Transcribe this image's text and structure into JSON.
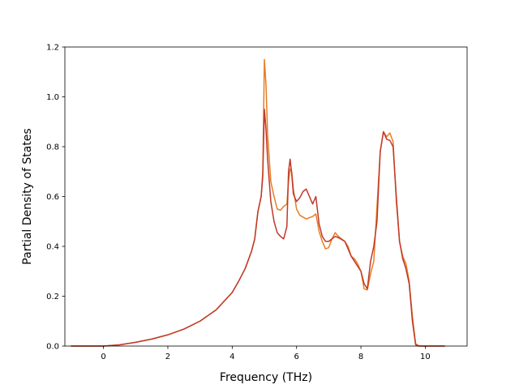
{
  "chart_data": {
    "type": "line",
    "title": "",
    "xlabel": "Frequency (THz)",
    "ylabel": "Partial Density of States",
    "xlim": [
      -1.2,
      11.3
    ],
    "ylim": [
      0.0,
      1.2
    ],
    "xticks": [
      0,
      2,
      4,
      6,
      8,
      10
    ],
    "xtick_labels": [
      "0",
      "2",
      "4",
      "6",
      "8",
      "10"
    ],
    "yticks": [
      0.0,
      0.2,
      0.4,
      0.6,
      0.8,
      1.0,
      1.2
    ],
    "ytick_labels": [
      "0.0",
      "0.2",
      "0.4",
      "0.6",
      "0.8",
      "1.0",
      "1.2"
    ],
    "grid": false,
    "series": [
      {
        "color": "#e67e22",
        "points": [
          [
            -1.0,
            0.0
          ],
          [
            0.0,
            0.0
          ],
          [
            0.5,
            0.005
          ],
          [
            1.0,
            0.015
          ],
          [
            1.5,
            0.028
          ],
          [
            2.0,
            0.045
          ],
          [
            2.5,
            0.068
          ],
          [
            3.0,
            0.1
          ],
          [
            3.5,
            0.145
          ],
          [
            4.0,
            0.215
          ],
          [
            4.2,
            0.26
          ],
          [
            4.4,
            0.31
          ],
          [
            4.6,
            0.38
          ],
          [
            4.7,
            0.43
          ],
          [
            4.8,
            0.54
          ],
          [
            4.9,
            0.6
          ],
          [
            4.95,
            0.7
          ],
          [
            5.0,
            1.15
          ],
          [
            5.05,
            1.05
          ],
          [
            5.1,
            0.85
          ],
          [
            5.2,
            0.66
          ],
          [
            5.3,
            0.6
          ],
          [
            5.4,
            0.55
          ],
          [
            5.5,
            0.545
          ],
          [
            5.6,
            0.56
          ],
          [
            5.7,
            0.57
          ],
          [
            5.75,
            0.66
          ],
          [
            5.8,
            0.71
          ],
          [
            5.85,
            0.7
          ],
          [
            5.9,
            0.63
          ],
          [
            6.0,
            0.55
          ],
          [
            6.1,
            0.525
          ],
          [
            6.3,
            0.51
          ],
          [
            6.5,
            0.52
          ],
          [
            6.6,
            0.53
          ],
          [
            6.7,
            0.46
          ],
          [
            6.8,
            0.42
          ],
          [
            6.9,
            0.39
          ],
          [
            7.0,
            0.395
          ],
          [
            7.1,
            0.43
          ],
          [
            7.2,
            0.455
          ],
          [
            7.3,
            0.44
          ],
          [
            7.5,
            0.42
          ],
          [
            7.6,
            0.4
          ],
          [
            7.7,
            0.36
          ],
          [
            7.8,
            0.35
          ],
          [
            7.9,
            0.33
          ],
          [
            8.0,
            0.3
          ],
          [
            8.1,
            0.23
          ],
          [
            8.2,
            0.225
          ],
          [
            8.3,
            0.29
          ],
          [
            8.4,
            0.34
          ],
          [
            8.5,
            0.56
          ],
          [
            8.6,
            0.78
          ],
          [
            8.7,
            0.86
          ],
          [
            8.8,
            0.84
          ],
          [
            8.9,
            0.855
          ],
          [
            9.0,
            0.82
          ],
          [
            9.1,
            0.58
          ],
          [
            9.2,
            0.42
          ],
          [
            9.3,
            0.36
          ],
          [
            9.4,
            0.33
          ],
          [
            9.5,
            0.26
          ],
          [
            9.6,
            0.12
          ],
          [
            9.7,
            0.01
          ],
          [
            9.8,
            0.0
          ],
          [
            10.6,
            0.0
          ]
        ]
      },
      {
        "color": "#c0392b",
        "points": [
          [
            -1.0,
            0.0
          ],
          [
            0.0,
            0.0
          ],
          [
            0.5,
            0.005
          ],
          [
            1.0,
            0.015
          ],
          [
            1.5,
            0.028
          ],
          [
            2.0,
            0.045
          ],
          [
            2.5,
            0.068
          ],
          [
            3.0,
            0.1
          ],
          [
            3.5,
            0.145
          ],
          [
            4.0,
            0.215
          ],
          [
            4.2,
            0.26
          ],
          [
            4.4,
            0.31
          ],
          [
            4.6,
            0.38
          ],
          [
            4.7,
            0.43
          ],
          [
            4.8,
            0.54
          ],
          [
            4.9,
            0.6
          ],
          [
            4.95,
            0.68
          ],
          [
            5.0,
            0.95
          ],
          [
            5.05,
            0.87
          ],
          [
            5.1,
            0.75
          ],
          [
            5.2,
            0.58
          ],
          [
            5.3,
            0.5
          ],
          [
            5.4,
            0.455
          ],
          [
            5.5,
            0.44
          ],
          [
            5.6,
            0.43
          ],
          [
            5.7,
            0.48
          ],
          [
            5.75,
            0.7
          ],
          [
            5.8,
            0.75
          ],
          [
            5.85,
            0.69
          ],
          [
            5.9,
            0.61
          ],
          [
            6.0,
            0.58
          ],
          [
            6.1,
            0.595
          ],
          [
            6.2,
            0.62
          ],
          [
            6.3,
            0.63
          ],
          [
            6.4,
            0.6
          ],
          [
            6.5,
            0.57
          ],
          [
            6.6,
            0.6
          ],
          [
            6.7,
            0.49
          ],
          [
            6.8,
            0.44
          ],
          [
            6.9,
            0.42
          ],
          [
            7.0,
            0.42
          ],
          [
            7.1,
            0.43
          ],
          [
            7.2,
            0.44
          ],
          [
            7.3,
            0.435
          ],
          [
            7.5,
            0.42
          ],
          [
            7.6,
            0.39
          ],
          [
            7.7,
            0.36
          ],
          [
            7.8,
            0.34
          ],
          [
            7.9,
            0.32
          ],
          [
            8.0,
            0.3
          ],
          [
            8.1,
            0.25
          ],
          [
            8.2,
            0.23
          ],
          [
            8.3,
            0.34
          ],
          [
            8.4,
            0.4
          ],
          [
            8.5,
            0.5
          ],
          [
            8.6,
            0.78
          ],
          [
            8.7,
            0.86
          ],
          [
            8.8,
            0.83
          ],
          [
            8.9,
            0.825
          ],
          [
            9.0,
            0.8
          ],
          [
            9.1,
            0.6
          ],
          [
            9.2,
            0.42
          ],
          [
            9.3,
            0.35
          ],
          [
            9.4,
            0.31
          ],
          [
            9.5,
            0.25
          ],
          [
            9.6,
            0.1
          ],
          [
            9.7,
            0.005
          ],
          [
            9.8,
            0.0
          ],
          [
            10.6,
            0.0
          ]
        ]
      }
    ]
  }
}
